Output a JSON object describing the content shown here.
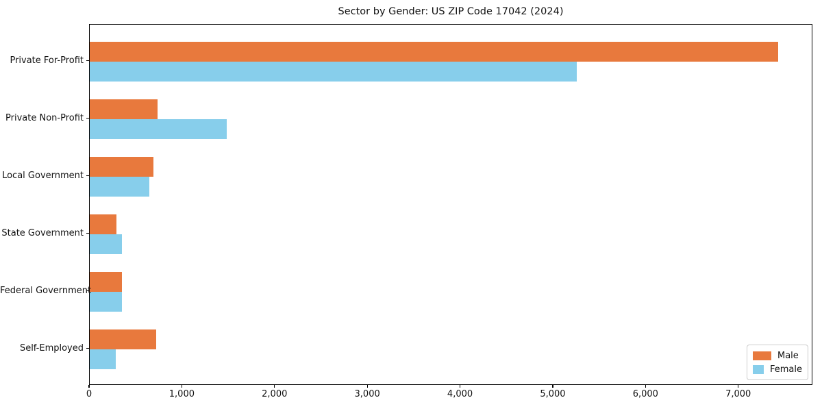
{
  "chart_data": {
    "type": "bar",
    "orientation": "horizontal",
    "title": "Sector by Gender: US ZIP Code 17042 (2024)",
    "xlabel": "",
    "ylabel": "",
    "categories": [
      "Private For-Profit",
      "Private Non-Profit",
      "Local Government",
      "State Government",
      "Federal Government",
      "Self-Employed"
    ],
    "series": [
      {
        "name": "Male",
        "color": "#E8793D",
        "values": [
          7420,
          730,
          690,
          285,
          350,
          715
        ]
      },
      {
        "name": "Female",
        "color": "#87CEEB",
        "values": [
          5250,
          1480,
          640,
          345,
          350,
          280
        ]
      }
    ],
    "xlim": [
      0,
      7800
    ],
    "xticks": {
      "values": [
        0,
        1000,
        2000,
        3000,
        4000,
        5000,
        6000,
        7000
      ],
      "labels": [
        "0",
        "1,000",
        "2,000",
        "3,000",
        "4,000",
        "5,000",
        "6,000",
        "7,000"
      ]
    },
    "grid": false,
    "legend": {
      "position": "lower right",
      "items": [
        {
          "label": "Male",
          "color": "#E8793D"
        },
        {
          "label": "Female",
          "color": "#87CEEB"
        }
      ]
    }
  }
}
